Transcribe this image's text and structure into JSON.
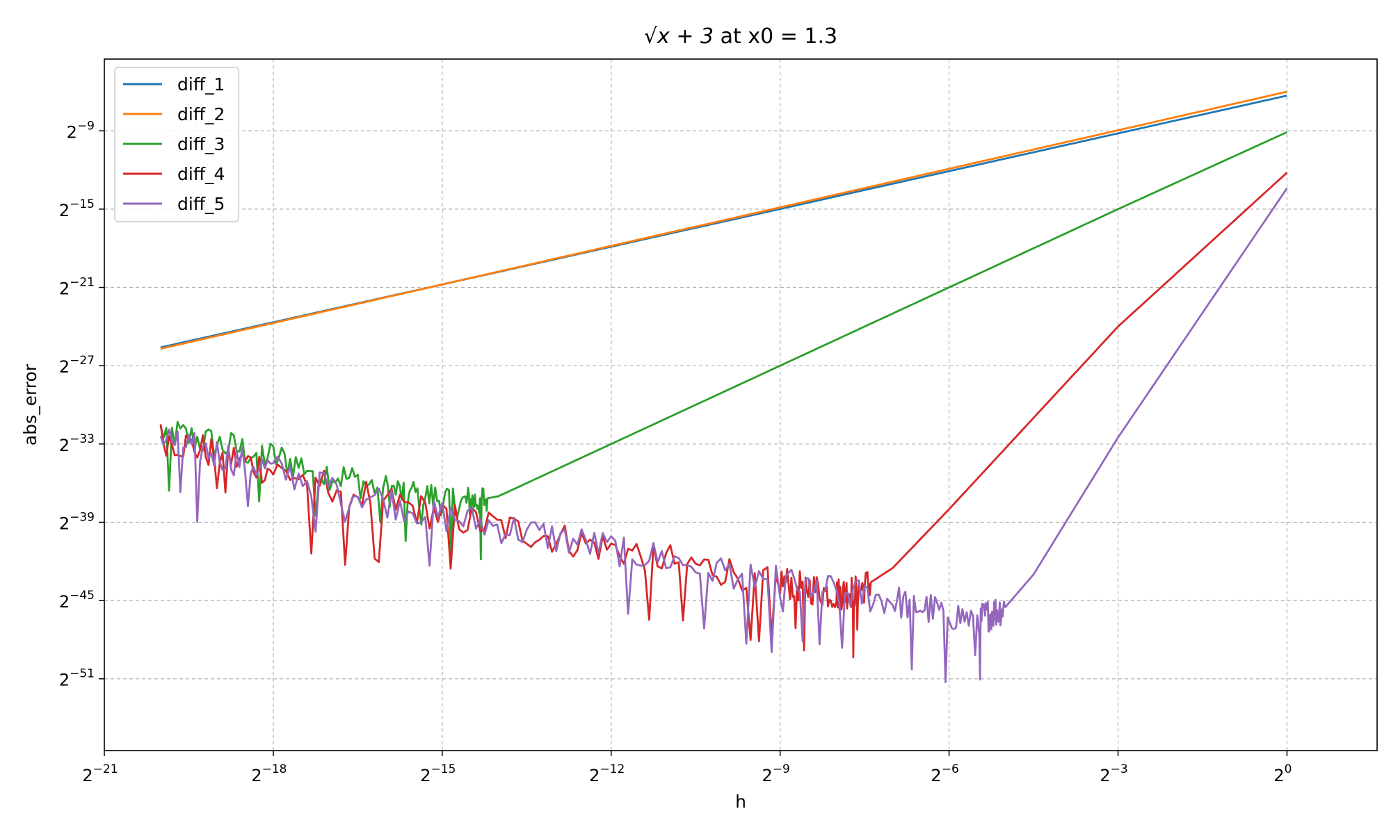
{
  "chart_data": {
    "type": "line",
    "title_math": "√x + 3",
    "title_suffix": " at x0 = 1.3",
    "xlabel": "h",
    "ylabel": "abs_error",
    "x_scale": "log2",
    "y_scale": "log2",
    "xlim_log2": [
      -21,
      1.6
    ],
    "ylim_log2": [
      -56.5,
      -3.5
    ],
    "x_ticks_log2": [
      -21,
      -18,
      -15,
      -12,
      -9,
      -6,
      -3,
      0
    ],
    "y_ticks_log2": [
      -9,
      -15,
      -21,
      -27,
      -33,
      -39,
      -45,
      -51
    ],
    "tick_base": "2",
    "grid": true,
    "legend_position": "top-left",
    "series": [
      {
        "name": "diff_1",
        "color": "#1f77b4",
        "log2_points": [
          [
            -20,
            -25.6
          ],
          [
            0,
            -6.3
          ]
        ]
      },
      {
        "name": "diff_2",
        "color": "#ff7f0e",
        "log2_points": [
          [
            -20,
            -25.7
          ],
          [
            0,
            -6.0
          ]
        ]
      },
      {
        "name": "diff_3",
        "color": "#2ca02c",
        "log2_points": [
          [
            -20,
            -32.0
          ],
          [
            -18,
            -34.0
          ],
          [
            -16,
            -36.5
          ],
          [
            -14.6,
            -37.5
          ],
          [
            -14,
            -37.0
          ],
          [
            -12,
            -33.0
          ],
          [
            -9,
            -27.0
          ],
          [
            -6,
            -21.0
          ],
          [
            -3,
            -15.0
          ],
          [
            0,
            -9.1
          ]
        ]
      },
      {
        "name": "diff_4",
        "color": "#d62728",
        "log2_points": [
          [
            -20,
            -32.5
          ],
          [
            -18,
            -35.0
          ],
          [
            -15,
            -38.5
          ],
          [
            -12,
            -41.0
          ],
          [
            -9,
            -43.5
          ],
          [
            -8,
            -44.5
          ],
          [
            -7.6,
            -44.2
          ],
          [
            -7,
            -42.5
          ],
          [
            -6,
            -38.0
          ],
          [
            -3,
            -24.0
          ],
          [
            0,
            -12.2
          ]
        ]
      },
      {
        "name": "diff_5",
        "color": "#9467bd",
        "log2_points": [
          [
            -20,
            -32.5
          ],
          [
            -18,
            -35.0
          ],
          [
            -15,
            -38.5
          ],
          [
            -12,
            -41.0
          ],
          [
            -9,
            -43.5
          ],
          [
            -7,
            -45.0
          ],
          [
            -5.5,
            -46.5
          ],
          [
            -5,
            -45.5
          ],
          [
            -4.5,
            -43.0
          ],
          [
            -3,
            -32.5
          ],
          [
            0,
            -13.4
          ]
        ]
      }
    ]
  }
}
